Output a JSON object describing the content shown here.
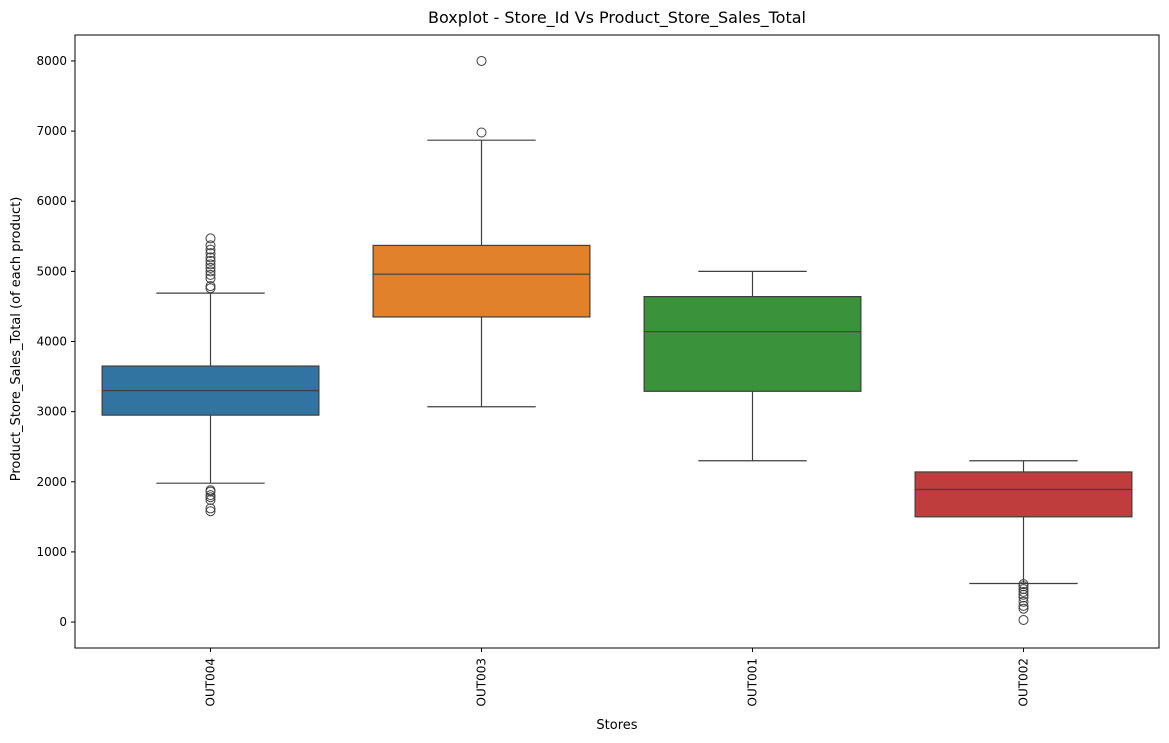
{
  "chart_data": {
    "type": "boxplot",
    "title": "Boxplot - Store_Id Vs Product_Store_Sales_Total",
    "xlabel": "Stores",
    "ylabel": "Product_Store_Sales_Total (of each product)",
    "categories": [
      "OUT004",
      "OUT003",
      "OUT001",
      "OUT002"
    ],
    "yticks": [
      0,
      1000,
      2000,
      3000,
      4000,
      5000,
      6000,
      7000,
      8000
    ],
    "ylim": [
      -370,
      8370
    ],
    "grid": false,
    "legend": "none",
    "boxes": [
      {
        "category": "OUT004",
        "color": "#3274a1",
        "q1": 2950,
        "median": 3300,
        "q3": 3650,
        "whisker_low": 1980,
        "whisker_high": 4690,
        "outliers": [
          1580,
          1620,
          1740,
          1780,
          1810,
          1860,
          1880,
          4760,
          4790,
          4900,
          4950,
          5000,
          5050,
          5100,
          5150,
          5200,
          5260,
          5310,
          5370,
          5470
        ]
      },
      {
        "category": "OUT003",
        "color": "#e1812c",
        "q1": 4350,
        "median": 4960,
        "q3": 5370,
        "whisker_low": 3070,
        "whisker_high": 6870,
        "outliers": [
          6980,
          8000
        ]
      },
      {
        "category": "OUT001",
        "color": "#3a923a",
        "q1": 3290,
        "median": 4140,
        "q3": 4640,
        "whisker_low": 2300,
        "whisker_high": 5000,
        "outliers": []
      },
      {
        "category": "OUT002",
        "color": "#c03d3e",
        "q1": 1500,
        "median": 1890,
        "q3": 2140,
        "whisker_low": 550,
        "whisker_high": 2300,
        "outliers": [
          30,
          190,
          230,
          290,
          350,
          390,
          430,
          470,
          510,
          540
        ]
      }
    ]
  }
}
